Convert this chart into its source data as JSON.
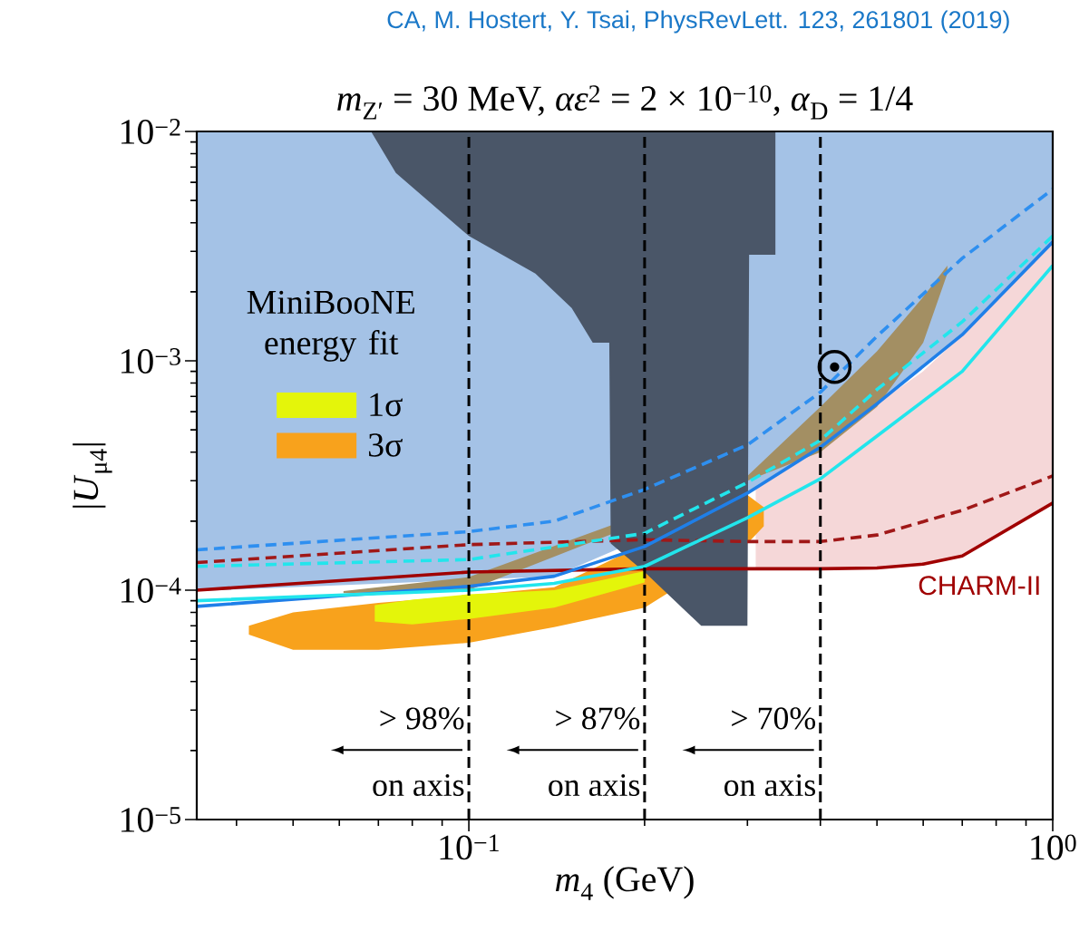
{
  "chart_data": {
    "type": "line",
    "title": "*m*$_{Z′}$ = 30 MeV, *αε*$^{2}$ = 2 × 10$^{−10}$, *α*$_{D}$ = 1/4",
    "subtitle": "CA, M. Hostert, Y. Tsai, PhysRevLett. 123, 261801 (2019)",
    "xlabel": "*m*$_{4}$ (GeV)",
    "ylabel": "|*U*$_{μ4}$|",
    "legend_title": "MiniBooNE energy fit",
    "log": "xy",
    "grid": false,
    "legend": "left",
    "xlim": [
      0.0342,
      1
    ],
    "ylim": [
      1e-05,
      0.01
    ],
    "xticks": [
      {
        "value": 0.04,
        "label": null
      },
      {
        "value": 0.05,
        "label": null
      },
      {
        "value": 0.06,
        "label": null
      },
      {
        "value": 0.07,
        "label": null
      },
      {
        "value": 0.08,
        "label": null
      },
      {
        "value": 0.09,
        "label": null
      },
      {
        "value": 0.1,
        "label": "10$^{−1}$"
      },
      {
        "value": 0.2,
        "label": null
      },
      {
        "value": 0.3,
        "label": null
      },
      {
        "value": 0.4,
        "label": null
      },
      {
        "value": 0.5,
        "label": null
      },
      {
        "value": 0.6,
        "label": null
      },
      {
        "value": 0.7,
        "label": null
      },
      {
        "value": 0.8,
        "label": null
      },
      {
        "value": 0.9,
        "label": null
      },
      {
        "value": 1,
        "label": "10$^{0}$"
      }
    ],
    "yticks": [
      {
        "value": 1e-05,
        "label": "10$^{−5}$"
      },
      {
        "value": 2e-05,
        "label": null
      },
      {
        "value": 3e-05,
        "label": null
      },
      {
        "value": 4e-05,
        "label": null
      },
      {
        "value": 5e-05,
        "label": null
      },
      {
        "value": 6e-05,
        "label": null
      },
      {
        "value": 7e-05,
        "label": null
      },
      {
        "value": 8e-05,
        "label": null
      },
      {
        "value": 9e-05,
        "label": null
      },
      {
        "value": 0.0001,
        "label": "10$^{−4}$"
      },
      {
        "value": 0.0002,
        "label": null
      },
      {
        "value": 0.0003,
        "label": null
      },
      {
        "value": 0.0004,
        "label": null
      },
      {
        "value": 0.0005,
        "label": null
      },
      {
        "value": 0.0006,
        "label": null
      },
      {
        "value": 0.0007,
        "label": null
      },
      {
        "value": 0.0008,
        "label": null
      },
      {
        "value": 0.0009,
        "label": null
      },
      {
        "value": 0.001,
        "label": "10$^{−3}$"
      },
      {
        "value": 0.002,
        "label": null
      },
      {
        "value": 0.003,
        "label": null
      },
      {
        "value": 0.004,
        "label": null
      },
      {
        "value": 0.005,
        "label": null
      },
      {
        "value": 0.006,
        "label": null
      },
      {
        "value": 0.007,
        "label": null
      },
      {
        "value": 0.008,
        "label": null
      },
      {
        "value": 0.009,
        "label": null
      },
      {
        "value": 0.01,
        "label": "10$^{−2}$"
      }
    ],
    "series": [
      {
        "type": "area",
        "color": "#a4c2e6",
        "x": [
          0.0342,
          1.0,
          1.0,
          0.7,
          0.5,
          0.4,
          0.3,
          0.2,
          0.14,
          0.1,
          0.0342
        ],
        "values": [
          0.01,
          0.01,
          0.0033,
          0.0013,
          0.00065,
          0.00042,
          0.000265,
          null,
          0.000115,
          null,
          9.9e-05
        ]
      },
      {
        "type": "area",
        "color": "#f5d7d8",
        "x": [
          0.31,
          0.4,
          0.5,
          0.6,
          0.7,
          1.0,
          1.0,
          0.7,
          0.6,
          0.5,
          0.4,
          0.31
        ],
        "values": [
          0.00028,
          0.00042,
          0.00065,
          0.0009,
          0.0013,
          0.0033,
          0.00024,
          0.000141,
          0.00013,
          0.000125,
          0.000124,
          0.000124
        ]
      },
      {
        "type": "area",
        "color": "#a38f63",
        "x": [
          0.061,
          0.1,
          0.2,
          0.3,
          0.4,
          0.5,
          0.6,
          0.66,
          0.66,
          0.6,
          0.5,
          0.4,
          0.3,
          0.2,
          0.1,
          0.061
        ],
        "values": [
          9.9e-05,
          0.000114,
          null,
          0.000315,
          0.00063,
          0.0011,
          0.0019,
          0.0026,
          0.0024,
          0.0012,
          0.00063,
          0.0004,
          null,
          null,
          0.0001,
          9.7e-05
        ]
      },
      {
        "type": "area",
        "name": "3σ",
        "color": "#f8a21c",
        "x": [
          0.042,
          0.05,
          0.07,
          0.1,
          0.14,
          0.2,
          0.25,
          0.3,
          0.32,
          0.32,
          0.3,
          0.25,
          0.2,
          0.14,
          0.1,
          0.07,
          0.05,
          0.042
        ],
        "values": [
          7e-05,
          8e-05,
          8.8e-05,
          9.5e-05,
          0.000103,
          null,
          null,
          0.00026,
          0.00023,
          0.00019,
          0.00016,
          null,
          8.4e-05,
          6.9e-05,
          5.9e-05,
          5.5e-05,
          5.5e-05,
          6.4e-05
        ]
      },
      {
        "type": "area",
        "name": "1σ",
        "color": "#e4f50a",
        "x": [
          0.069,
          0.08,
          0.1,
          0.14,
          0.2,
          0.2,
          0.14,
          0.1,
          0.08,
          0.069
        ],
        "values": [
          8.6e-05,
          9.1e-05,
          9.6e-05,
          0.0001,
          0.000121,
          0.000108,
          8.4e-05,
          7.5e-05,
          7.1e-05,
          7.3e-05
        ]
      },
      {
        "type": "area",
        "color": "#4a5668",
        "x": [
          0.068,
          0.335,
          0.335,
          0.302,
          0.3,
          0.25,
          0.2,
          0.175,
          0.174,
          0.163,
          0.15,
          0.13,
          0.1,
          0.075
        ],
        "values": [
          0.01,
          0.01,
          0.0029,
          0.0029,
          7e-05,
          7e-05,
          0.00012,
          0.00016,
          0.0012,
          0.0012,
          0.0017,
          0.0024,
          0.0035,
          0.0066
        ]
      },
      {
        "line_style": "dashed",
        "color": "#2e8ff0",
        "x": [
          0.0342,
          0.1,
          0.14,
          0.2,
          0.3,
          0.4,
          0.5,
          0.7,
          1.0
        ],
        "values": [
          0.00015,
          0.00018,
          0.0002,
          0.000275,
          0.00043,
          0.00073,
          0.00128,
          0.0028,
          0.0056
        ]
      },
      {
        "line_style": "dashed",
        "color": "#a01818",
        "x": [
          0.0342,
          0.1,
          0.2,
          0.3,
          0.4,
          0.5,
          0.7,
          1.0
        ],
        "values": [
          0.000132,
          0.000158,
          0.000166,
          0.000163,
          0.000163,
          0.000174,
          0.000223,
          0.000315
        ]
      },
      {
        "line_style": "dashed",
        "color": "#22e5ec",
        "x": [
          0.0342,
          0.1,
          0.2,
          0.3,
          0.4,
          0.5,
          0.7,
          1.0
        ],
        "values": [
          0.000127,
          0.000136,
          0.000177,
          0.000295,
          0.00045,
          0.00075,
          0.00148,
          0.0035
        ]
      },
      {
        "line_style": "solid",
        "name": "CHARM-II",
        "color": "#a00000",
        "x": [
          0.0342,
          0.1,
          0.2,
          0.4,
          0.5,
          0.6,
          0.7,
          1.0
        ],
        "values": [
          0.0001,
          0.00012,
          0.000124,
          0.000124,
          0.000125,
          0.00013,
          0.000141,
          0.00024
        ]
      },
      {
        "line_style": "solid",
        "color": "#1f7fe8",
        "x": [
          0.0342,
          0.1,
          0.14,
          0.2,
          0.3,
          0.4,
          0.5,
          0.7,
          1.0
        ],
        "values": [
          8.5e-05,
          0.000104,
          0.000115,
          0.000155,
          0.000265,
          0.00042,
          0.00065,
          0.0013,
          0.0033
        ]
      },
      {
        "line_style": "solid",
        "color": "#22e5ec",
        "x": [
          0.0342,
          0.1,
          0.14,
          0.2,
          0.3,
          0.4,
          0.5,
          0.7,
          1.0
        ],
        "values": [
          9e-05,
          0.0001,
          0.000107,
          0.000127,
          0.000207,
          0.000306,
          0.00047,
          0.0009,
          0.0026
        ]
      },
      {
        "type": "scatter",
        "marker": "circle",
        "color": "#000000",
        "x": [
          0.423
        ],
        "values": [
          0.00094
        ]
      }
    ],
    "ref_lines": [
      {
        "axis": "x",
        "value": 0.1,
        "color": "#000000",
        "line_style": "dashed"
      },
      {
        "axis": "x",
        "value": 0.2,
        "color": "#000000",
        "line_style": "dashed"
      },
      {
        "axis": "x",
        "value": 0.4,
        "color": "#000000",
        "line_style": "dashed"
      }
    ],
    "annotations": [
      "> 98%",
      "on axis",
      "> 87%",
      "on axis",
      "> 70%",
      "on axis"
    ]
  }
}
